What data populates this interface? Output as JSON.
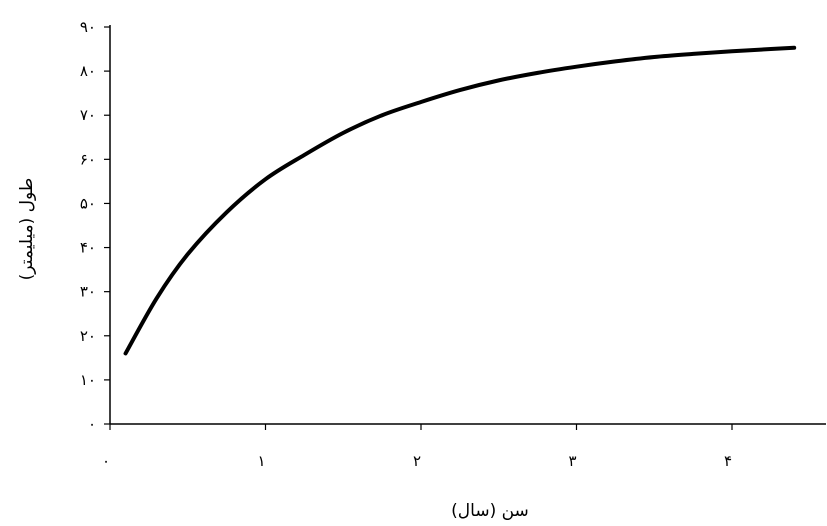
{
  "chart_data": {
    "type": "line",
    "xlabel": "سن (سال)",
    "ylabel": "طول (میلیمتر)",
    "xlim": [
      0,
      4.6
    ],
    "ylim": [
      0,
      90
    ],
    "x_ticks": [
      0,
      1,
      2,
      3,
      4
    ],
    "x_tick_labels": [
      "۰",
      "۱",
      "۲",
      "۳",
      "۴"
    ],
    "y_ticks": [
      0,
      10,
      20,
      30,
      40,
      50,
      60,
      70,
      80,
      90
    ],
    "y_tick_labels": [
      "۰",
      "۱۰",
      "۲۰",
      "۳۰",
      "۴۰",
      "۵۰",
      "۶۰",
      "۷۰",
      "۸۰",
      "۹۰"
    ],
    "grid": false,
    "line_color": "#000000",
    "series": [
      {
        "x": [
          0.1,
          0.3,
          0.5,
          0.75,
          1.0,
          1.25,
          1.5,
          1.75,
          2.0,
          2.25,
          2.5,
          2.75,
          3.0,
          3.25,
          3.5,
          3.75,
          4.0,
          4.25,
          4.4
        ],
        "y": [
          16,
          28.5,
          38.5,
          48,
          55.5,
          61,
          66,
          70,
          73,
          75.7,
          77.9,
          79.6,
          81,
          82.2,
          83.2,
          83.9,
          84.5,
          85,
          85.3
        ]
      }
    ]
  }
}
